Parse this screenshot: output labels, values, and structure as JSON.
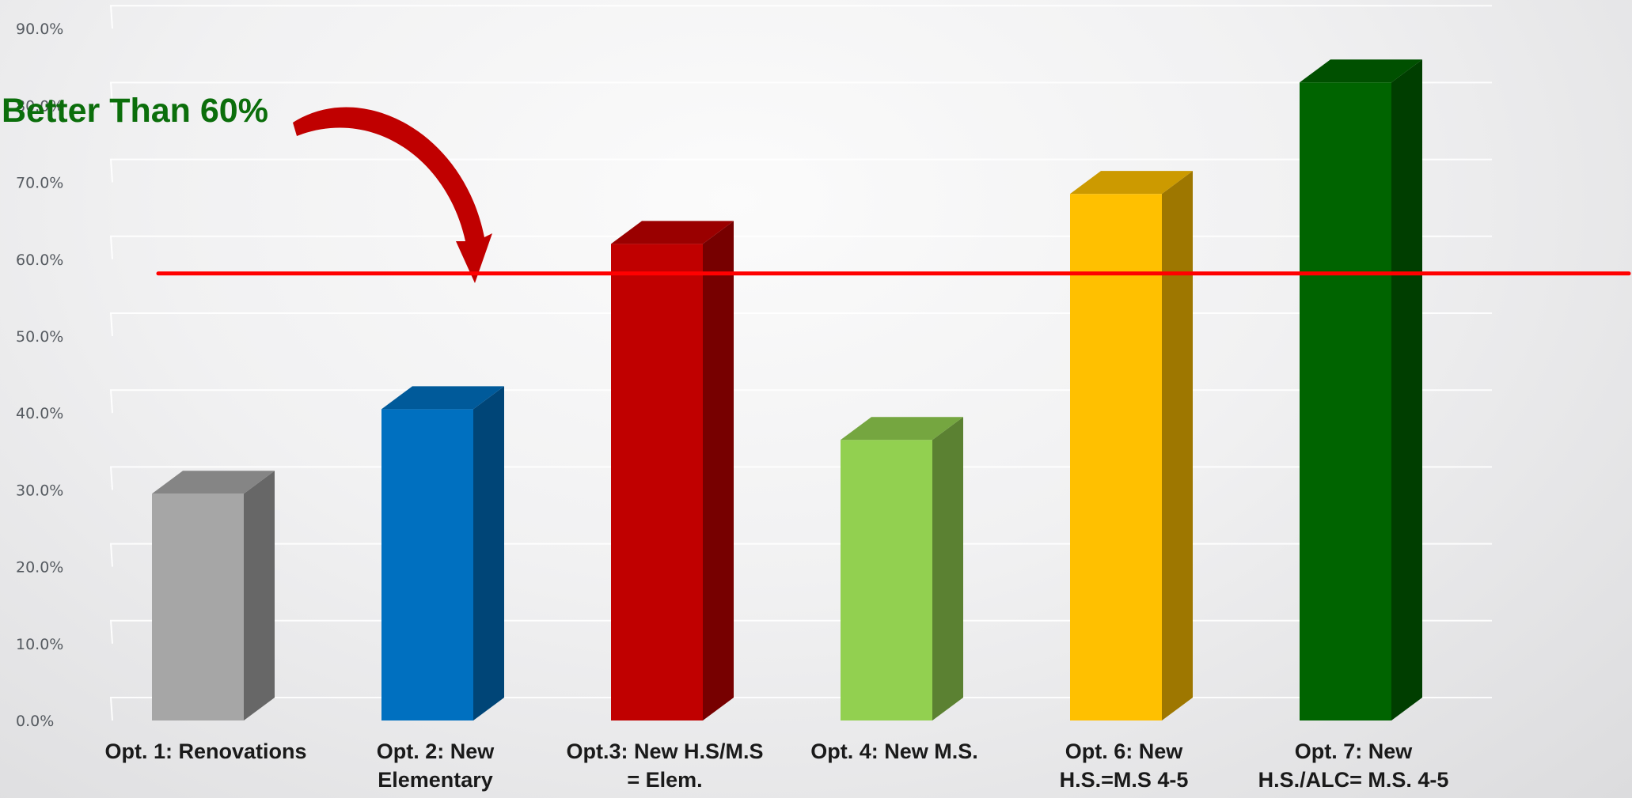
{
  "colors": {
    "bars": [
      "#a6a6a6",
      "#0070c0",
      "#c00000",
      "#92d050",
      "#ffc000",
      "#006400"
    ],
    "threshold_line": "#ff0000",
    "arrow": "#c00000",
    "annotation_text": "#0b6e0b"
  },
  "chart_data": {
    "type": "bar",
    "style": "3d-column",
    "categories": [
      "Opt. 1: Renovations",
      "Opt. 2: New Elementary",
      "Opt.3: New H.S/M.S = Elem.",
      "Opt. 4: New M.S.",
      "Opt. 6: New H.S.=M.S 4-5",
      "Opt. 7: New H.S./ALC= M.S. 4-5"
    ],
    "category_lines": [
      [
        "Opt. 1: Renovations"
      ],
      [
        "Opt. 2: New",
        "Elementary"
      ],
      [
        "Opt.3: New H.S/M.S",
        "= Elem."
      ],
      [
        "Opt. 4: New M.S."
      ],
      [
        "Opt. 6: New",
        "H.S.=M.S 4-5"
      ],
      [
        "Opt. 7: New",
        "H.S./ALC= M.S. 4-5"
      ]
    ],
    "values": [
      29.5,
      40.5,
      62.0,
      36.5,
      68.5,
      83.0
    ],
    "yticks": [
      "0.0%",
      "10.0%",
      "20.0%",
      "30.0%",
      "40.0%",
      "50.0%",
      "60.0%",
      "70.0%",
      "80.0%",
      "90.0%"
    ],
    "ylim": [
      0,
      90
    ],
    "grid": true,
    "title": "",
    "xlabel": "",
    "ylabel": "",
    "threshold": 60,
    "annotation": "Better Than 60%"
  }
}
